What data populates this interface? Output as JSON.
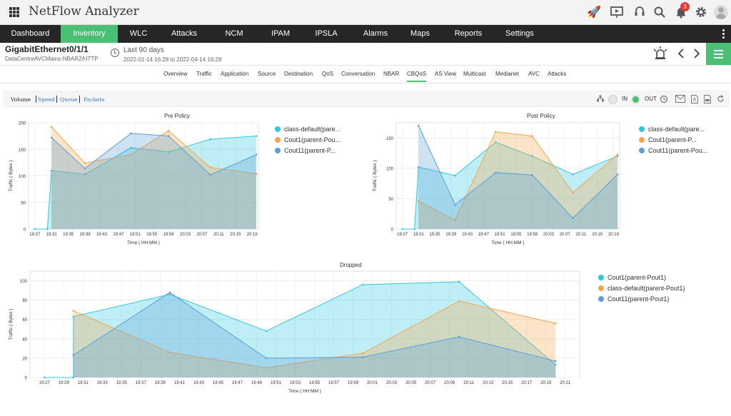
{
  "app": {
    "title": "NetFlow Analyzer",
    "notification_count": "3"
  },
  "top_icons": [
    "rocket-icon",
    "presentation-icon",
    "headset-icon",
    "search-icon",
    "bell-icon",
    "gear-icon",
    "user-icon"
  ],
  "nav": {
    "items": [
      "Dashboard",
      "Inventory",
      "WLC",
      "Attacks",
      "NCM",
      "IPAM",
      "IPSLA",
      "Alarms",
      "Maps",
      "Reports",
      "Settings"
    ],
    "active": "Inventory"
  },
  "header": {
    "interface": "GigabitEthernet0/1/1",
    "path": "DataCentreAVCMains-NBAR2/HTTP",
    "period": "Last 90 days",
    "range": "2022-01-14 16:28 to 2022-04-14 16:28"
  },
  "tabs": {
    "items": [
      "Overview",
      "Traffic",
      "Application",
      "Source",
      "Destination",
      "QoS",
      "Conversation",
      "NBAR",
      "CBQoS",
      "AS View",
      "Multicast",
      "Medianet",
      "AVC",
      "Attacks"
    ],
    "active": "CBQoS"
  },
  "toolbar": {
    "metrics": [
      "Volume",
      "Speed",
      "Queue",
      "Packets"
    ],
    "active_metric": "Volume",
    "in_label": "IN",
    "out_label": "OUT",
    "selected_direction": "OUT"
  },
  "colors": {
    "cyan": "#30c7e1",
    "orange": "#f5a54a",
    "blue": "#5b9fd6",
    "green": "#4bbf73",
    "nav_bg": "#262626"
  },
  "chart_data": [
    {
      "type": "area",
      "title": "Pre Policy",
      "xlabel": "Time ( HH:MM )",
      "ylabel": "Traffic ( Bytes )",
      "ylim": [
        0,
        200
      ],
      "yticks": [
        0,
        50,
        100,
        150,
        200
      ],
      "xticks": [
        "19:27",
        "19:31",
        "19:35",
        "19:39",
        "19:43",
        "19:47",
        "19:51",
        "19:55",
        "19:59",
        "20:03",
        "20:07",
        "20:11",
        "20:15",
        "20:19"
      ],
      "series": [
        {
          "name": "class-default(pare...",
          "color": "#30c7e1",
          "points": [
            [
              "19:27",
              0
            ],
            [
              "19:30",
              0
            ],
            [
              "19:31",
              110
            ],
            [
              "19:39",
              103
            ],
            [
              "19:50",
              153
            ],
            [
              "19:59",
              145
            ],
            [
              "20:09",
              169
            ],
            [
              "20:20",
              175
            ]
          ]
        },
        {
          "name": "Cout1(parent-Pou...",
          "color": "#f5a54a",
          "points": [
            [
              "19:31",
              192
            ],
            [
              "19:39",
              124
            ],
            [
              "19:50",
              140
            ],
            [
              "19:59",
              185
            ],
            [
              "20:09",
              116
            ],
            [
              "20:20",
              104
            ]
          ]
        },
        {
          "name": "Cout11(parent-P...",
          "color": "#5b9fd6",
          "points": [
            [
              "19:31",
              172
            ],
            [
              "19:39",
              114
            ],
            [
              "19:50",
              180
            ],
            [
              "19:59",
              175
            ],
            [
              "20:09",
              102
            ],
            [
              "20:20",
              140
            ]
          ]
        }
      ]
    },
    {
      "type": "area",
      "title": "Post Policy",
      "xlabel": "Time ( HH:MM )",
      "ylabel": "Traffic ( Bytes )",
      "ylim": [
        0,
        175
      ],
      "yticks": [
        0,
        50,
        100,
        150
      ],
      "xticks": [
        "19:27",
        "19:31",
        "19:35",
        "19:39",
        "19:43",
        "19:47",
        "19:51",
        "19:55",
        "19:59",
        "20:03",
        "20:07",
        "20:11",
        "20:15",
        "20:19"
      ],
      "series": [
        {
          "name": "class-default(pare...",
          "color": "#30c7e1",
          "points": [
            [
              "19:27",
              0
            ],
            [
              "19:30",
              0
            ],
            [
              "19:31",
              102
            ],
            [
              "19:40",
              88
            ],
            [
              "19:50",
              143
            ],
            [
              "19:59",
              120
            ],
            [
              "20:09",
              90
            ],
            [
              "20:20",
              120
            ]
          ]
        },
        {
          "name": "Cout1(parent-P...",
          "color": "#f5a54a",
          "points": [
            [
              "19:31",
              46
            ],
            [
              "19:40",
              15
            ],
            [
              "19:50",
              160
            ],
            [
              "19:59",
              153
            ],
            [
              "20:09",
              60
            ],
            [
              "20:20",
              123
            ]
          ]
        },
        {
          "name": "Cout11(parent-Pou...",
          "color": "#5b9fd6",
          "points": [
            [
              "19:31",
              170
            ],
            [
              "19:40",
              40
            ],
            [
              "19:50",
              93
            ],
            [
              "19:59",
              89
            ],
            [
              "20:09",
              18
            ],
            [
              "20:20",
              90
            ]
          ]
        }
      ]
    },
    {
      "type": "area",
      "title": "Dropped",
      "xlabel": "Time ( HH:MM )",
      "ylabel": "Traffic ( Bytes )",
      "ylim": [
        0,
        110
      ],
      "yticks": [
        0,
        20,
        40,
        60,
        80,
        100
      ],
      "xticks": [
        "19:27",
        "19:29",
        "19:31",
        "19:33",
        "19:35",
        "19:37",
        "19:39",
        "19:41",
        "19:43",
        "19:45",
        "19:47",
        "19:49",
        "19:51",
        "19:53",
        "19:55",
        "19:57",
        "19:59",
        "20:01",
        "20:03",
        "20:05",
        "20:07",
        "20:09",
        "20:11",
        "20:13",
        "20:15",
        "20:17",
        "20:19",
        "20:21"
      ],
      "series": [
        {
          "name": "Cout1(parent-Pout1)",
          "color": "#30c7e1",
          "points": [
            [
              "19:27",
              0
            ],
            [
              "19:30",
              0
            ],
            [
              "19:30",
              63
            ],
            [
              "19:40",
              86
            ],
            [
              "19:50",
              48
            ],
            [
              "20:00",
              96
            ],
            [
              "20:10",
              99
            ],
            [
              "20:20",
              13
            ]
          ]
        },
        {
          "name": "class-default(parent-Pout1)",
          "color": "#f5a54a",
          "points": [
            [
              "19:30",
              69
            ],
            [
              "19:40",
              26
            ],
            [
              "19:50",
              10
            ],
            [
              "20:00",
              25
            ],
            [
              "20:10",
              79
            ],
            [
              "20:20",
              56
            ]
          ]
        },
        {
          "name": "Cout11(parent-Pout1)",
          "color": "#5b9fd6",
          "points": [
            [
              "19:30",
              23
            ],
            [
              "19:40",
              88
            ],
            [
              "19:50",
              20
            ],
            [
              "20:00",
              21
            ],
            [
              "20:10",
              42
            ],
            [
              "20:20",
              17
            ]
          ]
        }
      ]
    }
  ]
}
